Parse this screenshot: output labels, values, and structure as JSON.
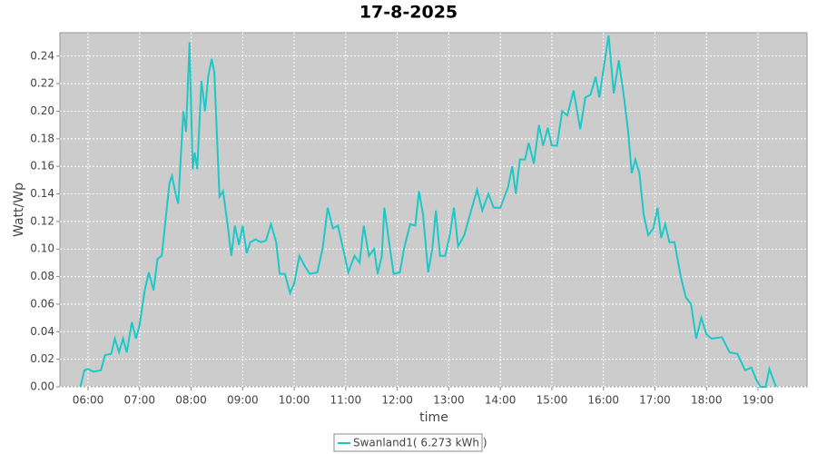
{
  "chart_data": {
    "type": "line",
    "title": "17-8-2025",
    "x_label": "time",
    "y_label": "Watt/Wp",
    "x": [
      5.85,
      5.93,
      6.0,
      6.1,
      6.25,
      6.33,
      6.45,
      6.52,
      6.6,
      6.68,
      6.75,
      6.85,
      6.93,
      7.0,
      7.1,
      7.18,
      7.27,
      7.35,
      7.43,
      7.5,
      7.58,
      7.63,
      7.7,
      7.75,
      7.85,
      7.9,
      7.97,
      8.03,
      8.07,
      8.12,
      8.2,
      8.27,
      8.33,
      8.4,
      8.45,
      8.55,
      8.62,
      8.7,
      8.78,
      8.85,
      8.93,
      9.0,
      9.08,
      9.15,
      9.25,
      9.35,
      9.45,
      9.55,
      9.65,
      9.72,
      9.82,
      9.92,
      10.0,
      10.1,
      10.2,
      10.3,
      10.45,
      10.55,
      10.65,
      10.75,
      10.85,
      10.95,
      11.05,
      11.17,
      11.27,
      11.35,
      11.45,
      11.55,
      11.62,
      11.7,
      11.75,
      11.83,
      11.93,
      12.05,
      12.13,
      12.25,
      12.35,
      12.42,
      12.5,
      12.6,
      12.68,
      12.75,
      12.83,
      12.93,
      13.02,
      13.1,
      13.18,
      13.3,
      13.45,
      13.55,
      13.65,
      13.77,
      13.87,
      14.0,
      14.15,
      14.23,
      14.3,
      14.38,
      14.48,
      14.55,
      14.65,
      14.75,
      14.83,
      14.92,
      15.0,
      15.1,
      15.2,
      15.3,
      15.42,
      15.55,
      15.65,
      15.75,
      15.85,
      15.92,
      16.0,
      16.1,
      16.2,
      16.3,
      16.4,
      16.48,
      16.55,
      16.62,
      16.7,
      16.78,
      16.87,
      16.97,
      17.05,
      17.12,
      17.2,
      17.28,
      17.38,
      17.5,
      17.6,
      17.7,
      17.8,
      17.9,
      18.0,
      18.1,
      18.3,
      18.45,
      18.6,
      18.75,
      18.87,
      18.97,
      19.05,
      19.15,
      19.22,
      19.3,
      19.35
    ],
    "series": [
      {
        "name": "Swanland1( 6.273 kWh )",
        "color": "#1cc8c8",
        "values": [
          0,
          0.012,
          0.013,
          0.011,
          0.012,
          0.023,
          0.024,
          0.035,
          0.025,
          0.035,
          0.025,
          0.047,
          0.035,
          0.045,
          0.07,
          0.083,
          0.07,
          0.093,
          0.095,
          0.12,
          0.148,
          0.153,
          0.14,
          0.133,
          0.2,
          0.185,
          0.25,
          0.158,
          0.17,
          0.158,
          0.222,
          0.2,
          0.225,
          0.238,
          0.228,
          0.138,
          0.142,
          0.12,
          0.095,
          0.117,
          0.103,
          0.117,
          0.097,
          0.105,
          0.107,
          0.105,
          0.106,
          0.118,
          0.105,
          0.082,
          0.082,
          0.068,
          0.075,
          0.095,
          0.088,
          0.082,
          0.083,
          0.1,
          0.13,
          0.115,
          0.117,
          0.1,
          0.083,
          0.095,
          0.09,
          0.117,
          0.095,
          0.1,
          0.082,
          0.095,
          0.13,
          0.108,
          0.082,
          0.083,
          0.1,
          0.118,
          0.117,
          0.142,
          0.125,
          0.083,
          0.1,
          0.128,
          0.095,
          0.095,
          0.11,
          0.13,
          0.102,
          0.11,
          0.13,
          0.143,
          0.128,
          0.14,
          0.13,
          0.13,
          0.145,
          0.16,
          0.14,
          0.165,
          0.165,
          0.177,
          0.162,
          0.19,
          0.175,
          0.188,
          0.175,
          0.175,
          0.2,
          0.197,
          0.215,
          0.187,
          0.21,
          0.212,
          0.225,
          0.21,
          0.23,
          0.255,
          0.213,
          0.237,
          0.21,
          0.185,
          0.155,
          0.165,
          0.155,
          0.125,
          0.11,
          0.115,
          0.13,
          0.108,
          0.118,
          0.105,
          0.105,
          0.08,
          0.065,
          0.06,
          0.035,
          0.05,
          0.038,
          0.035,
          0.036,
          0.025,
          0.024,
          0.012,
          0.014,
          0.005,
          0,
          0,
          0.013,
          0.005,
          0
        ]
      }
    ],
    "xlim": [
      5.454,
      19.951
    ],
    "xticks": [
      {
        "value": 6,
        "label": "06:00"
      },
      {
        "value": 7,
        "label": "07:00"
      },
      {
        "value": 8,
        "label": "08:00"
      },
      {
        "value": 9,
        "label": "09:00"
      },
      {
        "value": 10,
        "label": "10:00"
      },
      {
        "value": 11,
        "label": "11:00"
      },
      {
        "value": 12,
        "label": "12:00"
      },
      {
        "value": 13,
        "label": "13:00"
      },
      {
        "value": 14,
        "label": "14:00"
      },
      {
        "value": 15,
        "label": "15:00"
      },
      {
        "value": 16,
        "label": "16:00"
      },
      {
        "value": 17,
        "label": "17:00"
      },
      {
        "value": 18,
        "label": "18:00"
      },
      {
        "value": 19,
        "label": "19:00"
      }
    ],
    "ylim": [
      0,
      0.257
    ],
    "yticks": [
      {
        "value": 0,
        "label": "0.00"
      },
      0.02,
      0.04,
      0.06,
      0.08,
      {
        "value": 0.1,
        "label": "0.10"
      },
      0.12,
      0.14,
      0.16,
      0.18,
      {
        "value": 0.2,
        "label": "0.20"
      },
      0.22,
      0.24
    ],
    "grid": true,
    "plot_background": "#cccccc",
    "legend": "bottom"
  }
}
